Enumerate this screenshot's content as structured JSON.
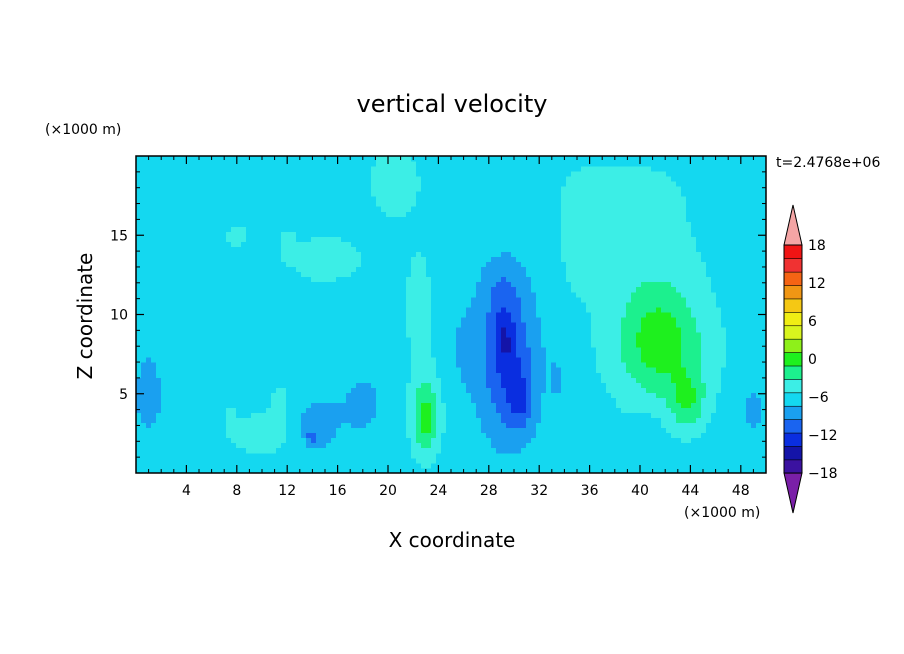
{
  "chart_data": {
    "type": "heatmap",
    "title": "vertical velocity",
    "xlabel": "X coordinate",
    "ylabel": "Z coordinate",
    "x_scale_label": "(×1000 m)",
    "y_scale_label": "(×1000 m)",
    "time_label": "t=2.4768e+06",
    "xlim": [
      0,
      50
    ],
    "ylim": [
      0,
      20
    ],
    "xticks": [
      {
        "value": 4,
        "label": "4"
      },
      {
        "value": 8,
        "label": "8"
      },
      {
        "value": 12,
        "label": "12"
      },
      {
        "value": 16,
        "label": "16"
      },
      {
        "value": 20,
        "label": "20"
      },
      {
        "value": 24,
        "label": "24"
      },
      {
        "value": 28,
        "label": "28"
      },
      {
        "value": 32,
        "label": "32"
      },
      {
        "value": 36,
        "label": "36"
      },
      {
        "value": 40,
        "label": "40"
      },
      {
        "value": 44,
        "label": "44"
      },
      {
        "value": 48,
        "label": "48"
      }
    ],
    "yticks": [
      {
        "value": 5,
        "label": "5"
      },
      {
        "value": 10,
        "label": "10"
      },
      {
        "value": 15,
        "label": "15"
      }
    ],
    "colorbar": {
      "min": -21,
      "max": 21,
      "step": 3,
      "tick_labels": [
        {
          "value": 18,
          "label": "18"
        },
        {
          "value": 12,
          "label": "12"
        },
        {
          "value": 6,
          "label": "6"
        },
        {
          "value": 0,
          "label": "0"
        },
        {
          "value": -6,
          "label": "−6"
        },
        {
          "value": -12,
          "label": "−12"
        },
        {
          "value": -18,
          "label": "−18"
        }
      ],
      "colors_low_to_high": [
        "#7a1fa8",
        "#3b12a0",
        "#1414a8",
        "#0a2ee0",
        "#1a64f0",
        "#1aa0f0",
        "#14d8f0",
        "#3ceee6",
        "#1cf08e",
        "#1ef01e",
        "#8ef01a",
        "#d8f51e",
        "#f0ee14",
        "#f5c814",
        "#f09614",
        "#f56414",
        "#f03232",
        "#f01414",
        "#f4a5a5"
      ]
    },
    "background_value": -1.5,
    "features": [
      {
        "x": 20.5,
        "z": 18.5,
        "sx": 2.2,
        "sz": 2.5,
        "amp": 3.0
      },
      {
        "x": 22.5,
        "z": 10.0,
        "sx": 1.4,
        "sz": 5.0,
        "amp": 2.4
      },
      {
        "x": 15.0,
        "z": 13.5,
        "sx": 4.5,
        "sz": 2.2,
        "amp": 2.2
      },
      {
        "x": 41.0,
        "z": 11.0,
        "sx": 4.5,
        "sz": 6.5,
        "amp": 3.4
      },
      {
        "x": 35.0,
        "z": 15.0,
        "sx": 1.8,
        "sz": 4.0,
        "amp": 2.2
      },
      {
        "x": 38.5,
        "z": 17.5,
        "sx": 4.0,
        "sz": 2.0,
        "amp": 2.5
      },
      {
        "x": 23.0,
        "z": 3.5,
        "sx": 1.1,
        "sz": 2.4,
        "amp": 8.5
      },
      {
        "x": 42.0,
        "z": 7.5,
        "sx": 3.8,
        "sz": 3.2,
        "amp": 4.8
      },
      {
        "x": 43.8,
        "z": 4.5,
        "sx": 1.4,
        "sz": 1.8,
        "amp": 6.0
      },
      {
        "x": 41.5,
        "z": 9.0,
        "sx": 2.5,
        "sz": 2.8,
        "amp": 2.6
      },
      {
        "x": 10.0,
        "z": 2.5,
        "sx": 2.6,
        "sz": 1.3,
        "amp": 3.6
      },
      {
        "x": 11.5,
        "z": 4.5,
        "sx": 1.0,
        "sz": 1.2,
        "amp": 2.4
      },
      {
        "x": 7.5,
        "z": 3.5,
        "sx": 0.5,
        "sz": 1.0,
        "amp": 2.4
      },
      {
        "x": 16.5,
        "z": 2.0,
        "sx": 0.6,
        "sz": 1.0,
        "amp": 2.2
      },
      {
        "x": 8.0,
        "z": 15.0,
        "sx": 1.0,
        "sz": 0.8,
        "amp": 2.6
      },
      {
        "x": 12.0,
        "z": 14.5,
        "sx": 0.6,
        "sz": 0.8,
        "amp": 2.0
      },
      {
        "x": 29.5,
        "z": 7.0,
        "sx": 2.2,
        "sz": 4.5,
        "amp": -8.0
      },
      {
        "x": 30.5,
        "z": 4.5,
        "sx": 1.0,
        "sz": 1.8,
        "amp": -4.5
      },
      {
        "x": 29.2,
        "z": 8.5,
        "sx": 0.8,
        "sz": 1.6,
        "amp": -4.0
      },
      {
        "x": 29.0,
        "z": 11.5,
        "sx": 1.6,
        "sz": 2.0,
        "amp": -3.0
      },
      {
        "x": 14.5,
        "z": 3.0,
        "sx": 2.2,
        "sz": 1.5,
        "amp": -3.5
      },
      {
        "x": 14.0,
        "z": 2.2,
        "sx": 0.4,
        "sz": 0.4,
        "amp": -5.5
      },
      {
        "x": 18.0,
        "z": 4.5,
        "sx": 1.6,
        "sz": 1.8,
        "amp": -2.5
      },
      {
        "x": 1.0,
        "z": 5.0,
        "sx": 1.3,
        "sz": 3.0,
        "amp": -2.5
      },
      {
        "x": 49.0,
        "z": 4.0,
        "sx": 0.9,
        "sz": 1.6,
        "amp": -2.5
      },
      {
        "x": 40.5,
        "z": 3.0,
        "sx": 0.9,
        "sz": 0.6,
        "amp": -2.5
      },
      {
        "x": 26.0,
        "z": 8.0,
        "sx": 1.2,
        "sz": 3.0,
        "amp": -1.6
      },
      {
        "x": 33.5,
        "z": 6.0,
        "sx": 0.8,
        "sz": 3.0,
        "amp": -1.5
      }
    ]
  }
}
